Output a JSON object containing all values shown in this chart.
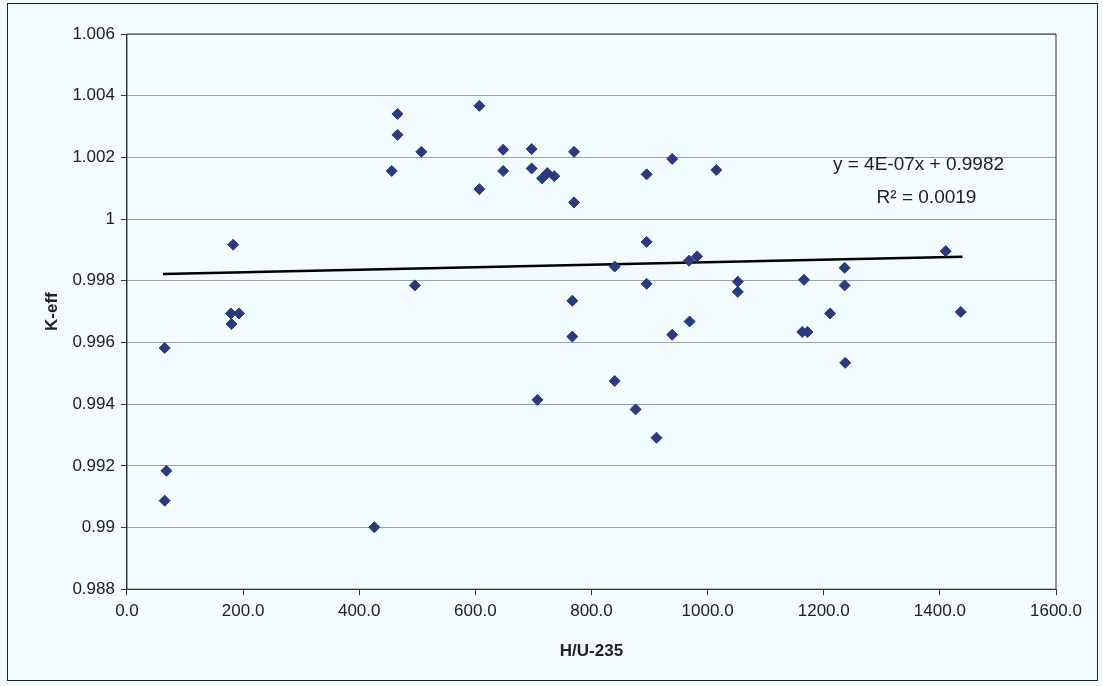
{
  "chart_data": {
    "type": "scatter",
    "xlabel": "H/U-235",
    "ylabel": "K-eff",
    "xlim": [
      0,
      1600
    ],
    "xticks": [
      {
        "value": 0,
        "label": "0.0"
      },
      {
        "value": 200,
        "label": "200.0"
      },
      {
        "value": 400,
        "label": "400.0"
      },
      {
        "value": 600,
        "label": "600.0"
      },
      {
        "value": 800,
        "label": "800.0"
      },
      {
        "value": 1000,
        "label": "1000.0"
      },
      {
        "value": 1200,
        "label": "1200.0"
      },
      {
        "value": 1400,
        "label": "1400.0"
      },
      {
        "value": 1600,
        "label": "1600.0"
      }
    ],
    "ylim": [
      0.988,
      1.006
    ],
    "yticks": [
      0.988,
      0.99,
      0.992,
      0.994,
      0.996,
      0.998,
      1,
      1.002,
      1.004,
      1.006
    ],
    "grid": "y",
    "legend": false,
    "marker": "diamond",
    "annotations": [
      "y = 4E-07x + 0.9982",
      "R² = 0.0019"
    ],
    "series": [
      {
        "type": "scatter",
        "color": "#2b3a7c",
        "x": [
          65,
          68,
          65,
          183,
          179,
          193,
          180,
          426,
          466,
          466,
          507,
          456,
          496,
          607,
          648,
          648,
          607,
          697,
          697,
          715,
          724,
          736,
          770,
          770,
          895,
          939,
          1015,
          895,
          840,
          895,
          968,
          982,
          767,
          767,
          969,
          939,
          840,
          707,
          876,
          912,
          1410,
          1236,
          1236,
          1166,
          1052,
          1052,
          1211,
          1163,
          1172,
          1436,
          1237
        ],
        "values": [
          0.99582,
          0.99184,
          0.99087,
          0.99917,
          0.99694,
          0.99694,
          0.9966,
          0.99001,
          1.00341,
          1.00273,
          1.00218,
          1.00156,
          0.99785,
          1.00367,
          1.00225,
          1.00156,
          1.00097,
          1.00227,
          1.00164,
          1.00132,
          1.00149,
          1.00139,
          1.00218,
          1.00054,
          1.00145,
          1.00195,
          1.00159,
          0.99926,
          0.99846,
          0.9979,
          0.99865,
          0.99879,
          0.99735,
          0.99619,
          0.99668,
          0.99625,
          0.99475,
          0.99414,
          0.99383,
          0.99291,
          0.99896,
          0.99842,
          0.99785,
          0.99803,
          0.99797,
          0.99764,
          0.99694,
          0.99634,
          0.99634,
          0.99699,
          0.99534
        ]
      },
      {
        "type": "line",
        "color": "#000000",
        "line_style": "solid",
        "marker": "none",
        "x": [
          62,
          1439
        ],
        "values": [
          0.99822,
          0.99878
        ]
      }
    ]
  }
}
